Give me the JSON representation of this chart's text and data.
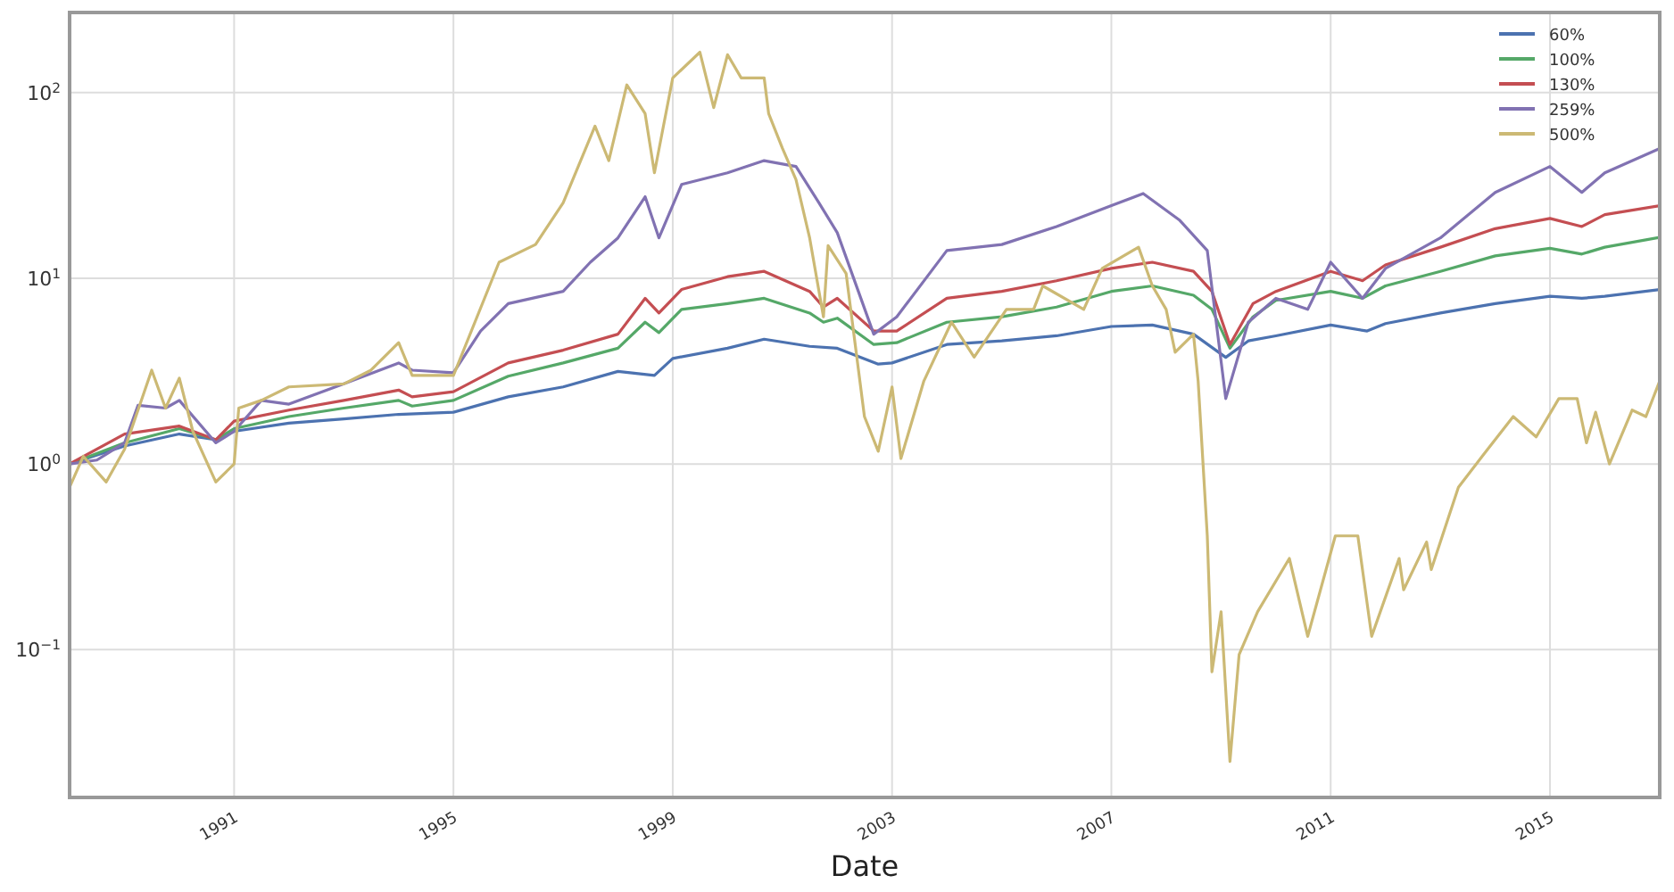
{
  "chart_data": {
    "type": "line",
    "xlabel": "Date",
    "log": "y",
    "grid": true,
    "legend": "top right",
    "line_style": "solid",
    "marker": "none",
    "xlim": [
      "1988-01",
      "2017-01"
    ],
    "xticks": [
      {
        "value": "1991-01",
        "label": "1991"
      },
      {
        "value": "1995-01",
        "label": "1995"
      },
      {
        "value": "1999-01",
        "label": "1999"
      },
      {
        "value": "2003-01",
        "label": "2003"
      },
      {
        "value": "2007-01",
        "label": "2007"
      },
      {
        "value": "2011-01",
        "label": "2011"
      },
      {
        "value": "2015-01",
        "label": "2015"
      }
    ],
    "ylim": [
      0.016,
      270
    ],
    "yticks": [
      {
        "value": 0.1,
        "label": "10$^{−1}$"
      },
      {
        "value": 1,
        "label": "10$^{0}$"
      },
      {
        "value": 10,
        "label": "10$^{1}$"
      },
      {
        "value": 100,
        "label": "10$^{2}$"
      }
    ],
    "series": [
      {
        "name": "60%",
        "color": "#4c72b0",
        "x": [
          "1988-01",
          "1989-01",
          "1990-01",
          "1990-09",
          "1991-01",
          "1992-01",
          "1993-01",
          "1994-01",
          "1995-01",
          "1996-01",
          "1997-01",
          "1998-01",
          "1998-09",
          "1999-01",
          "2000-01",
          "2000-09",
          "2001-07",
          "2002-01",
          "2002-10",
          "2003-01",
          "2004-01",
          "2005-01",
          "2006-01",
          "2007-01",
          "2007-10",
          "2008-07",
          "2009-02",
          "2009-07",
          "2010-01",
          "2011-01",
          "2011-09",
          "2012-01",
          "2013-01",
          "2014-01",
          "2015-01",
          "2015-08",
          "2016-01",
          "2017-01"
        ],
        "values": [
          1.0,
          1.25,
          1.45,
          1.35,
          1.5,
          1.66,
          1.75,
          1.85,
          1.9,
          2.3,
          2.6,
          3.15,
          3.0,
          3.7,
          4.2,
          4.7,
          4.3,
          4.2,
          3.45,
          3.5,
          4.4,
          4.6,
          4.9,
          5.5,
          5.6,
          5.0,
          3.75,
          4.6,
          4.9,
          5.6,
          5.2,
          5.7,
          6.5,
          7.3,
          8.0,
          7.8,
          8.0,
          8.7
        ]
      },
      {
        "name": "100%",
        "color": "#55a868",
        "x": [
          "1988-01",
          "1989-01",
          "1990-01",
          "1990-09",
          "1991-01",
          "1992-01",
          "1993-01",
          "1994-01",
          "1994-04",
          "1995-01",
          "1996-01",
          "1997-01",
          "1998-01",
          "1998-07",
          "1998-10",
          "1999-03",
          "2000-01",
          "2000-09",
          "2001-07",
          "2001-10",
          "2002-01",
          "2002-09",
          "2003-02",
          "2004-01",
          "2005-01",
          "2006-01",
          "2007-01",
          "2007-10",
          "2008-07",
          "2008-11",
          "2009-03",
          "2009-08",
          "2010-01",
          "2011-01",
          "2011-08",
          "2012-01",
          "2013-01",
          "2014-01",
          "2015-01",
          "2015-08",
          "2016-01",
          "2017-01"
        ],
        "values": [
          1.0,
          1.3,
          1.55,
          1.35,
          1.55,
          1.8,
          2.0,
          2.2,
          2.05,
          2.2,
          2.97,
          3.5,
          4.2,
          5.8,
          5.1,
          6.8,
          7.3,
          7.8,
          6.5,
          5.8,
          6.1,
          4.4,
          4.5,
          5.8,
          6.2,
          7.0,
          8.5,
          9.1,
          8.1,
          6.8,
          4.2,
          6.2,
          7.6,
          8.5,
          7.8,
          9.1,
          10.9,
          13.2,
          14.5,
          13.5,
          14.7,
          16.6
        ]
      },
      {
        "name": "130%",
        "color": "#c44e52",
        "x": [
          "1988-01",
          "1989-01",
          "1990-01",
          "1990-09",
          "1991-01",
          "1992-01",
          "1993-01",
          "1994-01",
          "1994-04",
          "1995-01",
          "1996-01",
          "1997-01",
          "1998-01",
          "1998-07",
          "1998-10",
          "1999-03",
          "2000-01",
          "2000-09",
          "2001-07",
          "2001-10",
          "2002-01",
          "2002-09",
          "2003-02",
          "2004-01",
          "2005-01",
          "2006-01",
          "2007-01",
          "2007-10",
          "2008-07",
          "2008-11",
          "2009-03",
          "2009-08",
          "2010-01",
          "2011-01",
          "2011-08",
          "2012-01",
          "2013-01",
          "2014-01",
          "2015-01",
          "2015-08",
          "2016-01",
          "2017-01"
        ],
        "values": [
          1.0,
          1.45,
          1.6,
          1.35,
          1.7,
          1.95,
          2.2,
          2.5,
          2.3,
          2.45,
          3.5,
          4.1,
          5.0,
          7.8,
          6.5,
          8.7,
          10.2,
          10.9,
          8.5,
          7.0,
          7.8,
          5.2,
          5.2,
          7.8,
          8.5,
          9.7,
          11.3,
          12.2,
          10.9,
          8.5,
          4.4,
          7.3,
          8.5,
          10.9,
          9.7,
          11.8,
          14.7,
          18.5,
          21,
          19,
          22,
          24.6
        ]
      },
      {
        "name": "259%",
        "color": "#8172b2",
        "x": [
          "1988-01",
          "1988-07",
          "1989-01",
          "1989-04",
          "1989-10",
          "1990-01",
          "1990-09",
          "1991-01",
          "1991-07",
          "1992-01",
          "1993-01",
          "1994-01",
          "1994-04",
          "1995-01",
          "1995-07",
          "1996-01",
          "1997-01",
          "1997-07",
          "1998-01",
          "1998-07",
          "1998-10",
          "1999-03",
          "2000-01",
          "2000-09",
          "2001-04",
          "2001-09",
          "2002-01",
          "2002-09",
          "2003-02",
          "2004-01",
          "2005-01",
          "2006-01",
          "2007-01",
          "2007-08",
          "2008-04",
          "2008-10",
          "2009-02",
          "2009-07",
          "2010-01",
          "2010-08",
          "2011-01",
          "2011-08",
          "2012-01",
          "2013-01",
          "2014-01",
          "2015-01",
          "2015-08",
          "2016-01",
          "2017-01"
        ],
        "values": [
          1.0,
          1.05,
          1.3,
          2.07,
          2.0,
          2.2,
          1.3,
          1.5,
          2.2,
          2.1,
          2.7,
          3.5,
          3.2,
          3.1,
          5.2,
          7.3,
          8.5,
          12.2,
          16.5,
          27.5,
          16.5,
          32,
          37,
          43,
          40,
          25.5,
          17.6,
          5.0,
          6.2,
          14.1,
          15.2,
          19,
          24.6,
          28.6,
          20.5,
          14.1,
          2.25,
          5.8,
          7.8,
          6.8,
          12.2,
          7.8,
          11.3,
          16.5,
          29,
          40,
          29,
          37,
          50
        ]
      },
      {
        "name": "500%",
        "color": "#ccb974",
        "x": [
          "1988-01",
          "1988-04",
          "1988-09",
          "1989-01",
          "1989-07",
          "1989-10",
          "1990-01",
          "1990-04",
          "1990-09",
          "1991-01",
          "1991-02",
          "1991-07",
          "1992-01",
          "1993-01",
          "1993-07",
          "1994-01",
          "1994-04",
          "1995-01",
          "1995-11",
          "1996-07",
          "1997-01",
          "1997-08",
          "1997-11",
          "1998-03",
          "1998-07",
          "1998-09",
          "1999-01",
          "1999-07",
          "1999-10",
          "2000-01",
          "2000-04",
          "2000-09",
          "2000-10",
          "2001-01",
          "2001-04",
          "2001-07",
          "2001-10",
          "2001-11",
          "2002-03",
          "2002-07",
          "2002-10",
          "2003-01",
          "2003-03",
          "2003-08",
          "2004-02",
          "2004-07",
          "2005-02",
          "2005-08",
          "2005-10",
          "2006-07",
          "2006-11",
          "2007-07",
          "2007-10",
          "2008-01",
          "2008-03",
          "2008-07",
          "2008-08",
          "2008-10",
          "2008-11",
          "2009-01",
          "2009-03",
          "2009-05",
          "2009-09",
          "2010-04",
          "2010-08",
          "2011-02",
          "2011-07",
          "2011-10",
          "2012-04",
          "2012-05",
          "2012-10",
          "2012-11",
          "2013-05",
          "2013-11",
          "2014-05",
          "2014-10",
          "2015-03",
          "2015-07",
          "2015-09",
          "2015-11",
          "2016-02",
          "2016-07",
          "2016-10",
          "2017-01"
        ],
        "values": [
          0.75,
          1.1,
          0.8,
          1.2,
          3.2,
          2.0,
          2.9,
          1.5,
          0.8,
          1.0,
          2.0,
          2.2,
          2.6,
          2.7,
          3.2,
          4.5,
          3.0,
          3.0,
          12.2,
          15.2,
          25.5,
          66,
          43,
          110,
          77,
          37,
          120,
          165,
          83,
          160,
          120,
          120,
          77,
          50,
          34,
          16.5,
          6.2,
          15,
          10.6,
          1.8,
          1.17,
          2.6,
          1.07,
          2.8,
          5.8,
          3.76,
          6.8,
          6.8,
          9.1,
          6.8,
          11.3,
          14.7,
          9.1,
          6.8,
          4.0,
          5.0,
          2.8,
          0.41,
          0.076,
          0.16,
          0.025,
          0.094,
          0.16,
          0.31,
          0.118,
          0.41,
          0.41,
          0.118,
          0.31,
          0.21,
          0.38,
          0.27,
          0.75,
          1.17,
          1.8,
          1.4,
          2.25,
          2.25,
          1.3,
          1.9,
          1.0,
          1.95,
          1.8,
          2.8
        ]
      }
    ]
  }
}
